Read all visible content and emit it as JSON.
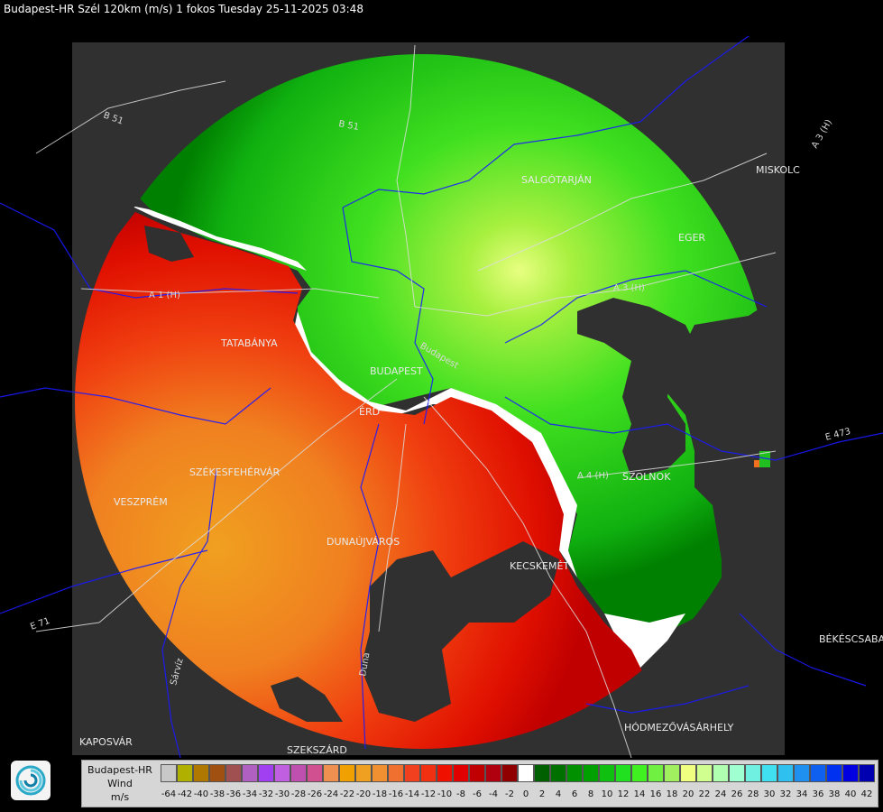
{
  "header": {
    "title": "Budapest-HR Szél 120km (m/s) 1 fokos Tuesday 25-11-2025 03:48"
  },
  "map": {
    "places": [
      {
        "name": "TATABÁNYA",
        "id": "tatabanya"
      },
      {
        "name": "BUDAPEST",
        "id": "budapest"
      },
      {
        "name": "ÉRD",
        "id": "erd"
      },
      {
        "name": "SZÉKESFEHÉRVÁR",
        "id": "szekesfehervar"
      },
      {
        "name": "VESZPRÉM",
        "id": "veszprem"
      },
      {
        "name": "DUNAÚJVÁROS",
        "id": "dunaujvaros"
      },
      {
        "name": "KECSKEMÉT",
        "id": "kecskemet"
      },
      {
        "name": "SZOLNOK",
        "id": "szolnok"
      },
      {
        "name": "SALGÓTARJÁN",
        "id": "salgotarjan"
      },
      {
        "name": "EGER",
        "id": "eger"
      },
      {
        "name": "MISKOLC",
        "id": "miskolc"
      },
      {
        "name": "BÉKÉSCSABA",
        "id": "bekescsaba"
      },
      {
        "name": "HÓDMEZŐVÁSÁRHELY",
        "id": "hodmezovasarhely"
      },
      {
        "name": "KAPOSVÁR",
        "id": "kaposvar"
      },
      {
        "name": "SZEKSZÁRD",
        "id": "szekszard"
      }
    ],
    "roads": [
      {
        "label": "B 51",
        "id": "b51-west"
      },
      {
        "label": "B 51",
        "id": "b51-north"
      },
      {
        "label": "A 1 (H)",
        "id": "a1"
      },
      {
        "label": "A 3 (H)",
        "id": "a3-east"
      },
      {
        "label": "A 3 (H)",
        "id": "a3-ne"
      },
      {
        "label": "A 4 (H)",
        "id": "a4"
      },
      {
        "label": "E 71",
        "id": "e71"
      },
      {
        "label": "E 473",
        "id": "e473"
      },
      {
        "label": "Budapest",
        "id": "budapest-river"
      },
      {
        "label": "Duna",
        "id": "duna"
      },
      {
        "label": "Sárvíz",
        "id": "sarviz"
      }
    ]
  },
  "legend": {
    "label_line1": "Budapest-HR",
    "label_line2": "Wind",
    "label_line3": "m/s",
    "ticks": [
      "-64",
      "-42",
      "-40",
      "-38",
      "-36",
      "-34",
      "-32",
      "-30",
      "-28",
      "-26",
      "-24",
      "-22",
      "-20",
      "-18",
      "-16",
      "-14",
      "-12",
      "-10",
      "-8",
      "-6",
      "-4",
      "-2",
      "0",
      "2",
      "4",
      "6",
      "8",
      "10",
      "12",
      "14",
      "16",
      "18",
      "20",
      "22",
      "24",
      "26",
      "28",
      "30",
      "32",
      "34",
      "36",
      "38",
      "40",
      "42"
    ],
    "colors": [
      "#c8c8c8",
      "#b0b000",
      "#b07800",
      "#a05010",
      "#a05050",
      "#b060c0",
      "#a040f0",
      "#c060e0",
      "#c050b0",
      "#d05090",
      "#f09050",
      "#f0a000",
      "#f0a020",
      "#f09030",
      "#f07030",
      "#f04020",
      "#f03010",
      "#f01000",
      "#e00000",
      "#c00000",
      "#b00010",
      "#900000",
      "#ffffff",
      "#006000",
      "#007000",
      "#009000",
      "#00a000",
      "#10c010",
      "#20e020",
      "#40f020",
      "#70f040",
      "#a0f060",
      "#f0ff80",
      "#d0ff90",
      "#b0ffb0",
      "#a0ffd0",
      "#70f0e0",
      "#40e0f0",
      "#30c0f0",
      "#2090f0",
      "#1060f0",
      "#0030f0",
      "#0000e0",
      "#0000b0"
    ]
  },
  "logo": {
    "icon": "weather-service-logo-icon"
  }
}
